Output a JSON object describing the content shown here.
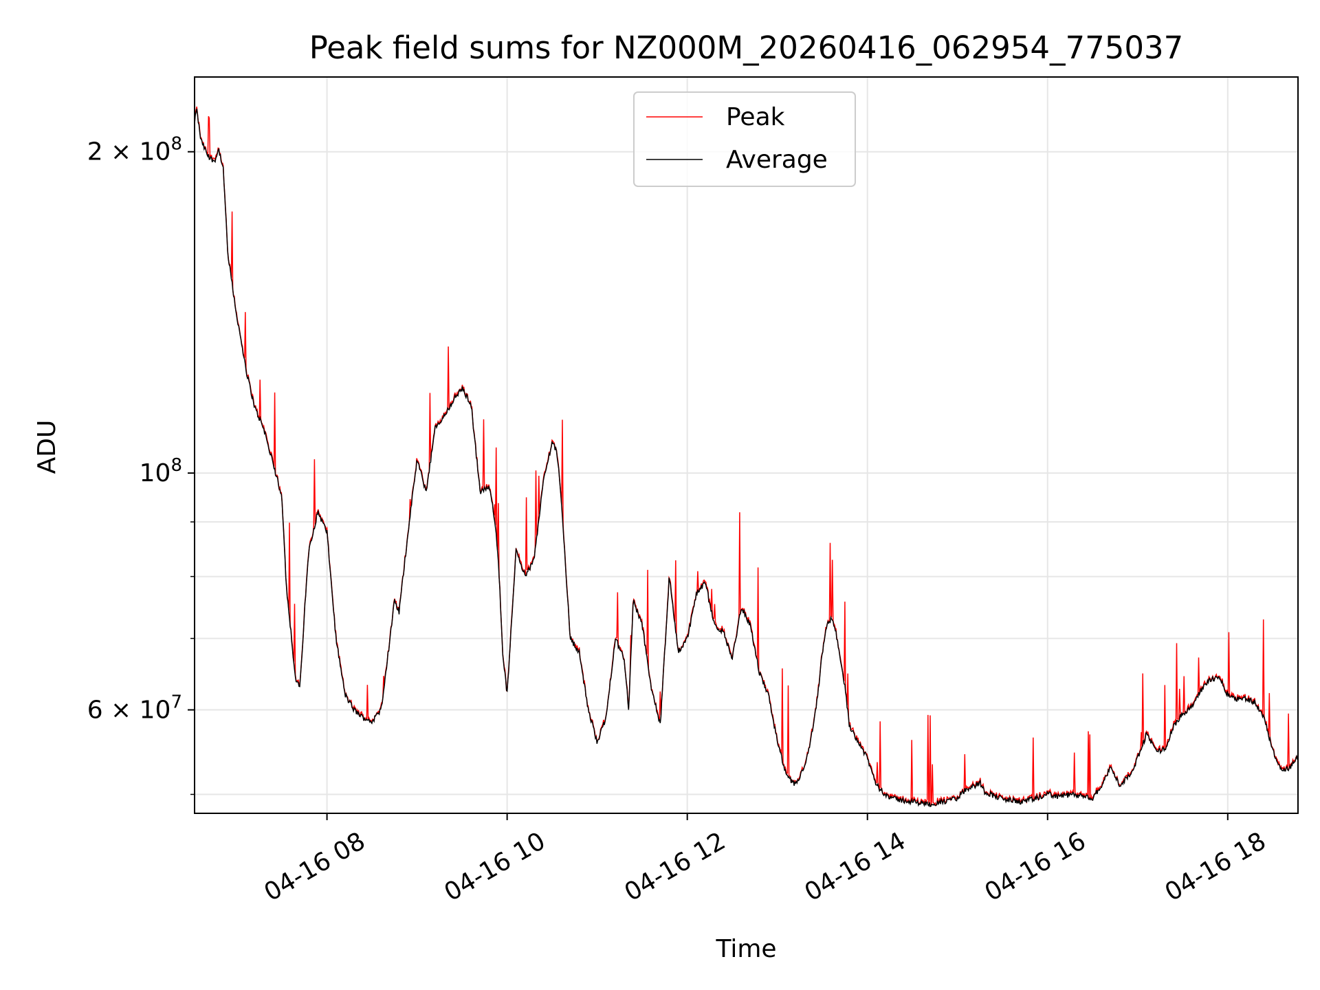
{
  "chart_data": {
    "type": "line",
    "title": "Peak field sums for NZ000M_20260416_062954_775037",
    "xlabel": "Time",
    "ylabel": "ADU",
    "yscale": "log",
    "xlim_hours": [
      6.53,
      18.78
    ],
    "ylim": [
      48000000,
      235000000
    ],
    "grid": true,
    "legend_position": "upper-center",
    "x_ticks": [
      {
        "hour": 8,
        "label": "04-16 08"
      },
      {
        "hour": 10,
        "label": "04-16 10"
      },
      {
        "hour": 12,
        "label": "04-16 12"
      },
      {
        "hour": 14,
        "label": "04-16 14"
      },
      {
        "hour": 16,
        "label": "04-16 16"
      },
      {
        "hour": 18,
        "label": "04-16 18"
      }
    ],
    "y_ticks_major": [
      {
        "value": 100000000,
        "base": "10",
        "exp": "8",
        "mult": ""
      },
      {
        "value": 200000000,
        "base": "10",
        "exp": "8",
        "mult": "2 × "
      },
      {
        "value": 60000000,
        "base": "10",
        "exp": "7",
        "mult": "6 × "
      }
    ],
    "y_ticks_minor": [
      50000000,
      70000000,
      80000000,
      90000000
    ],
    "series": [
      {
        "name": "Peak",
        "color": "#ff0000"
      },
      {
        "name": "Average",
        "color": "#000000"
      }
    ],
    "average_points": [
      [
        6.53,
        212000000
      ],
      [
        6.55,
        220000000
      ],
      [
        6.6,
        205000000
      ],
      [
        6.68,
        198000000
      ],
      [
        6.75,
        196000000
      ],
      [
        6.8,
        201000000
      ],
      [
        6.85,
        192000000
      ],
      [
        6.9,
        160000000
      ],
      [
        7.0,
        140000000
      ],
      [
        7.1,
        125000000
      ],
      [
        7.2,
        115000000
      ],
      [
        7.3,
        110000000
      ],
      [
        7.4,
        102000000
      ],
      [
        7.5,
        95000000
      ],
      [
        7.55,
        78000000
      ],
      [
        7.6,
        71000000
      ],
      [
        7.65,
        64000000
      ],
      [
        7.7,
        63000000
      ],
      [
        7.75,
        74000000
      ],
      [
        7.8,
        85000000
      ],
      [
        7.9,
        92000000
      ],
      [
        8.0,
        88000000
      ],
      [
        8.1,
        70000000
      ],
      [
        8.2,
        62000000
      ],
      [
        8.3,
        60000000
      ],
      [
        8.4,
        59000000
      ],
      [
        8.5,
        58500000
      ],
      [
        8.6,
        60000000
      ],
      [
        8.7,
        70000000
      ],
      [
        8.75,
        76000000
      ],
      [
        8.8,
        74000000
      ],
      [
        8.9,
        88000000
      ],
      [
        9.0,
        103000000
      ],
      [
        9.1,
        96000000
      ],
      [
        9.2,
        110000000
      ],
      [
        9.3,
        113000000
      ],
      [
        9.4,
        117000000
      ],
      [
        9.5,
        120000000
      ],
      [
        9.6,
        116000000
      ],
      [
        9.7,
        96000000
      ],
      [
        9.8,
        97000000
      ],
      [
        9.85,
        92000000
      ],
      [
        9.9,
        84000000
      ],
      [
        9.95,
        68000000
      ],
      [
        10.0,
        62000000
      ],
      [
        10.1,
        85000000
      ],
      [
        10.2,
        80000000
      ],
      [
        10.3,
        83000000
      ],
      [
        10.4,
        98000000
      ],
      [
        10.5,
        107000000
      ],
      [
        10.55,
        105000000
      ],
      [
        10.6,
        95000000
      ],
      [
        10.7,
        70000000
      ],
      [
        10.8,
        68000000
      ],
      [
        10.9,
        60000000
      ],
      [
        11.0,
        56000000
      ],
      [
        11.1,
        59000000
      ],
      [
        11.2,
        70000000
      ],
      [
        11.3,
        67000000
      ],
      [
        11.35,
        60000000
      ],
      [
        11.4,
        76000000
      ],
      [
        11.5,
        72000000
      ],
      [
        11.6,
        63000000
      ],
      [
        11.7,
        58000000
      ],
      [
        11.8,
        80000000
      ],
      [
        11.9,
        68000000
      ],
      [
        12.0,
        70000000
      ],
      [
        12.1,
        77000000
      ],
      [
        12.2,
        79000000
      ],
      [
        12.3,
        72000000
      ],
      [
        12.4,
        71000000
      ],
      [
        12.5,
        67000000
      ],
      [
        12.6,
        75000000
      ],
      [
        12.7,
        72000000
      ],
      [
        12.8,
        65000000
      ],
      [
        12.9,
        62000000
      ],
      [
        13.0,
        56000000
      ],
      [
        13.1,
        52000000
      ],
      [
        13.2,
        51000000
      ],
      [
        13.3,
        53000000
      ],
      [
        13.35,
        55000000
      ],
      [
        13.4,
        58000000
      ],
      [
        13.45,
        62000000
      ],
      [
        13.5,
        68000000
      ],
      [
        13.55,
        72000000
      ],
      [
        13.6,
        73000000
      ],
      [
        13.65,
        71000000
      ],
      [
        13.7,
        67000000
      ],
      [
        13.75,
        63000000
      ],
      [
        13.8,
        58000000
      ],
      [
        13.9,
        56000000
      ],
      [
        14.0,
        54000000
      ],
      [
        14.1,
        51000000
      ],
      [
        14.2,
        50000000
      ],
      [
        14.3,
        49500000
      ],
      [
        14.5,
        49200000
      ],
      [
        14.7,
        49000000
      ],
      [
        14.9,
        49300000
      ],
      [
        15.0,
        49600000
      ],
      [
        15.1,
        50600000
      ],
      [
        15.2,
        51000000
      ],
      [
        15.25,
        51300000
      ],
      [
        15.3,
        50300000
      ],
      [
        15.5,
        49500000
      ],
      [
        15.7,
        49200000
      ],
      [
        15.9,
        49600000
      ],
      [
        16.0,
        50100000
      ],
      [
        16.1,
        49800000
      ],
      [
        16.3,
        50000000
      ],
      [
        16.4,
        49700000
      ],
      [
        16.5,
        49600000
      ],
      [
        16.6,
        51000000
      ],
      [
        16.7,
        53000000
      ],
      [
        16.8,
        51000000
      ],
      [
        16.9,
        52000000
      ],
      [
        17.0,
        54000000
      ],
      [
        17.1,
        57000000
      ],
      [
        17.2,
        55000000
      ],
      [
        17.3,
        55000000
      ],
      [
        17.4,
        58000000
      ],
      [
        17.5,
        59500000
      ],
      [
        17.6,
        60500000
      ],
      [
        17.7,
        62500000
      ],
      [
        17.8,
        64000000
      ],
      [
        17.9,
        64500000
      ],
      [
        18.0,
        62000000
      ],
      [
        18.1,
        61500000
      ],
      [
        18.2,
        61500000
      ],
      [
        18.3,
        61000000
      ],
      [
        18.4,
        59000000
      ],
      [
        18.5,
        55000000
      ],
      [
        18.6,
        52500000
      ],
      [
        18.7,
        53000000
      ],
      [
        18.75,
        54000000
      ]
    ]
  }
}
